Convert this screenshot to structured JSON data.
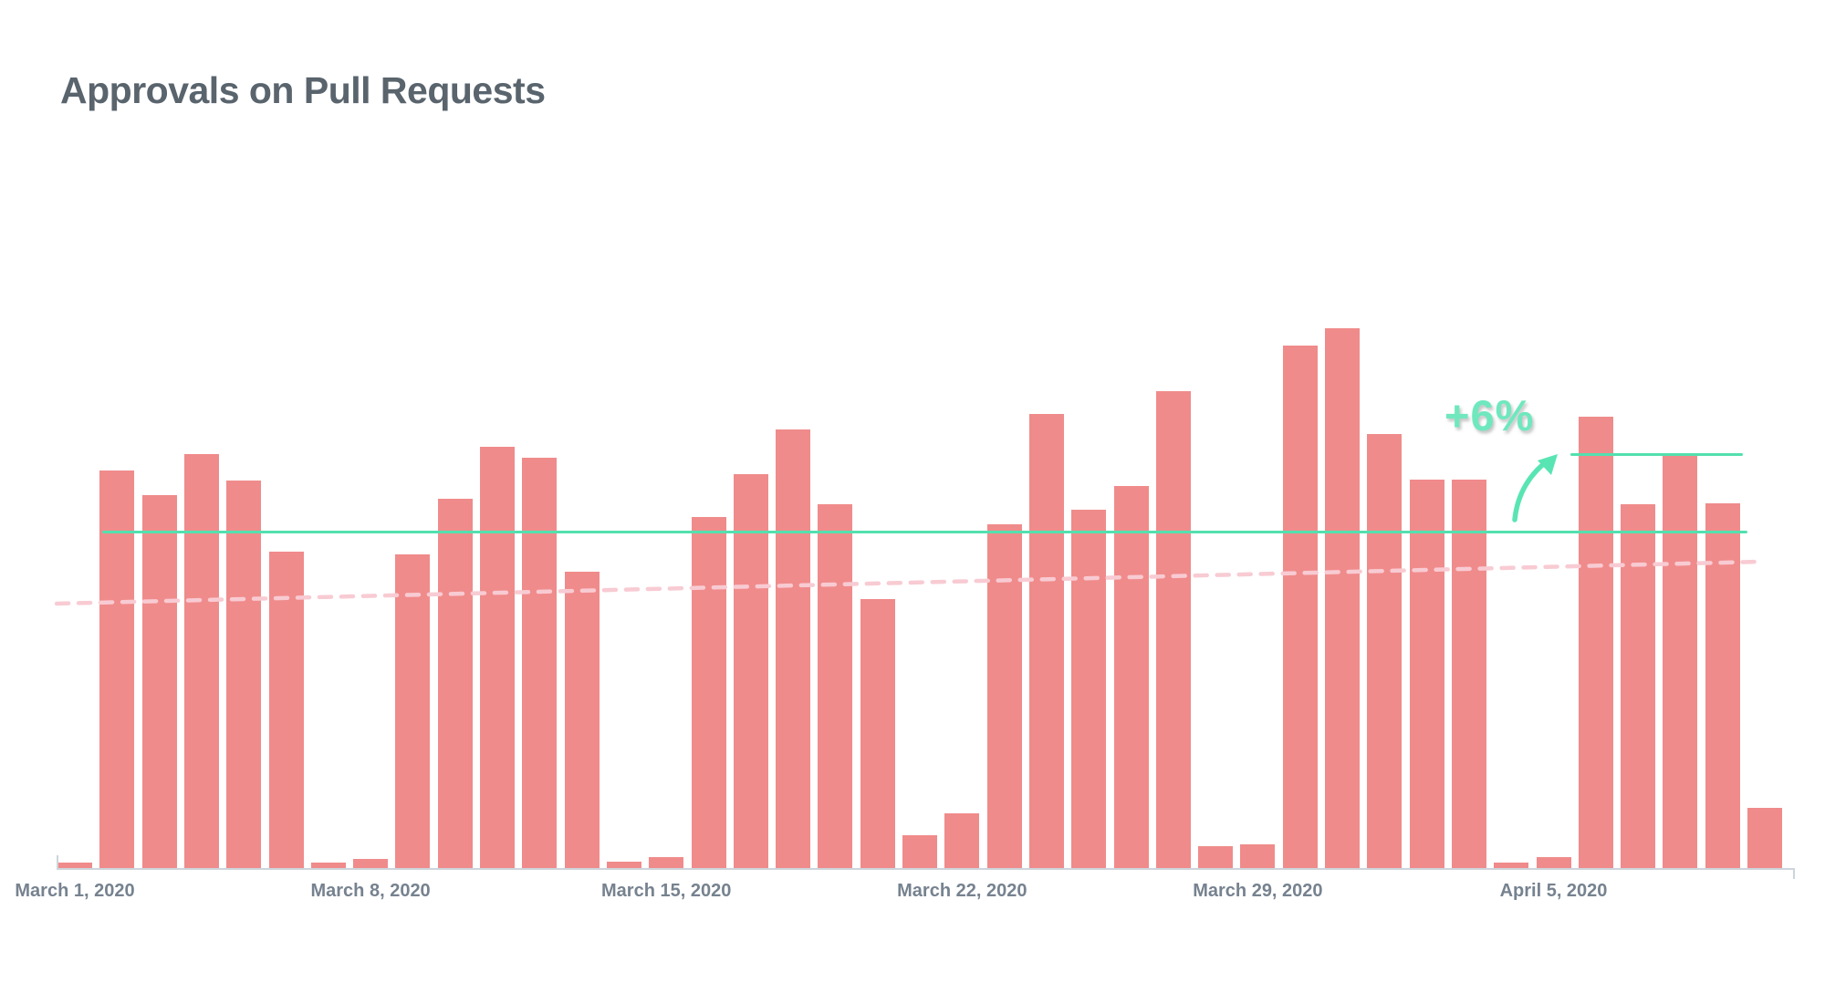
{
  "header": {
    "title": "Approvals on Pull Requests"
  },
  "colors": {
    "title": "#59646D",
    "axis_label": "#76828F",
    "bar": "#F08B8B",
    "axis_line": "#CDD5DC",
    "average_line": "#53E0AF",
    "trend_line": "#F8CBD3",
    "annotation": "#6FE8BE",
    "arrow": "#59E5B3",
    "background": "#FFFFFF"
  },
  "chart_data": {
    "type": "bar",
    "title": "Approvals on Pull Requests",
    "xlabel": "",
    "ylabel": "",
    "unit": "approvals per day (relative units; chart shows no y-axis scale)",
    "grid": false,
    "legend": false,
    "ylim": [
      0,
      700
    ],
    "x": [
      "2020-03-01",
      "2020-03-02",
      "2020-03-03",
      "2020-03-04",
      "2020-03-05",
      "2020-03-06",
      "2020-03-07",
      "2020-03-08",
      "2020-03-09",
      "2020-03-10",
      "2020-03-11",
      "2020-03-12",
      "2020-03-13",
      "2020-03-14",
      "2020-03-15",
      "2020-03-16",
      "2020-03-17",
      "2020-03-18",
      "2020-03-19",
      "2020-03-20",
      "2020-03-21",
      "2020-03-22",
      "2020-03-23",
      "2020-03-24",
      "2020-03-25",
      "2020-03-26",
      "2020-03-27",
      "2020-03-28",
      "2020-03-29",
      "2020-03-30",
      "2020-03-31",
      "2020-04-01",
      "2020-04-02",
      "2020-04-03",
      "2020-04-04",
      "2020-04-05",
      "2020-04-06",
      "2020-04-07",
      "2020-04-08",
      "2020-04-09",
      "2020-04-10"
    ],
    "values": [
      6,
      436,
      409,
      454,
      425,
      347,
      6,
      10,
      344,
      405,
      462,
      450,
      325,
      7,
      12,
      385,
      432,
      481,
      399,
      295,
      36,
      60,
      377,
      498,
      393,
      419,
      523,
      24,
      26,
      573,
      592,
      476,
      426,
      426,
      6,
      12,
      495,
      399,
      452,
      400,
      66
    ],
    "x_tick_labels": [
      {
        "label": "March 1, 2020",
        "day_index": 0
      },
      {
        "label": "March 8, 2020",
        "day_index": 7
      },
      {
        "label": "March 15, 2020",
        "day_index": 14
      },
      {
        "label": "March 22, 2020",
        "day_index": 21
      },
      {
        "label": "March 29, 2020",
        "day_index": 28
      },
      {
        "label": "April 5, 2020",
        "day_index": 35
      }
    ],
    "average_lines": [
      {
        "name": "average-line-before",
        "value": 370,
        "x_start_day": 1.05,
        "x_end_day": 40.0
      },
      {
        "name": "average-line-after",
        "value": 455,
        "x_start_day": 35.8,
        "x_end_day": 39.9
      }
    ],
    "trend_line": {
      "style": "dashed",
      "value_start": 290,
      "value_end": 336,
      "x_start_day": -0.02,
      "x_end_day": 40.3
    },
    "annotation": {
      "text": "+6%"
    }
  }
}
